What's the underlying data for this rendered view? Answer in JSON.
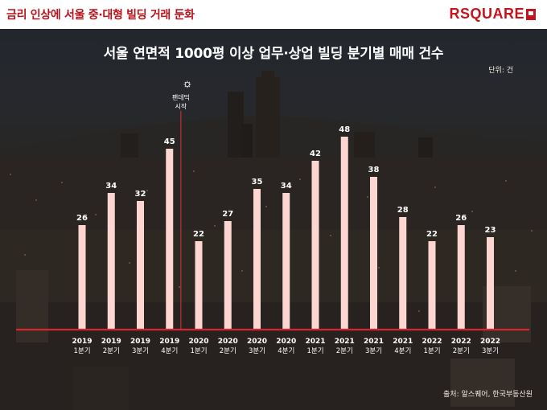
{
  "header": {
    "headline": "금리 인상에 서울 중·대형 빌딩 거래 둔화",
    "logo_text": "RSQUARE"
  },
  "chart_data": {
    "type": "bar",
    "title": "서울 연면적 1000평 이상 업무·상업 빌딩 분기별 매매 건수",
    "unit": "단위: 건",
    "source": "출처: 알스퀘어, 한국부동산원",
    "categories": [
      {
        "year": "2019",
        "quarter": "1분기"
      },
      {
        "year": "2019",
        "quarter": "2분기"
      },
      {
        "year": "2019",
        "quarter": "3분기"
      },
      {
        "year": "2019",
        "quarter": "4분기"
      },
      {
        "year": "2020",
        "quarter": "1분기"
      },
      {
        "year": "2020",
        "quarter": "2분기"
      },
      {
        "year": "2020",
        "quarter": "3분기"
      },
      {
        "year": "2020",
        "quarter": "4분기"
      },
      {
        "year": "2021",
        "quarter": "1분기"
      },
      {
        "year": "2021",
        "quarter": "2분기"
      },
      {
        "year": "2021",
        "quarter": "3분기"
      },
      {
        "year": "2021",
        "quarter": "4분기"
      },
      {
        "year": "2022",
        "quarter": "1분기"
      },
      {
        "year": "2022",
        "quarter": "2분기"
      },
      {
        "year": "2022",
        "quarter": "3분기"
      }
    ],
    "values": [
      26,
      34,
      32,
      45,
      22,
      27,
      35,
      34,
      42,
      48,
      38,
      28,
      22,
      26,
      23
    ],
    "ylim": [
      0,
      55
    ],
    "grid": false,
    "annotation": {
      "line1": "팬데믹",
      "line2": "시작",
      "position": "between 2019 4분기 and 2020 1분기"
    },
    "colors": {
      "bar": "#fdd5d1",
      "baseline": "#d7262f",
      "annotation_line": "#e0313a"
    }
  }
}
